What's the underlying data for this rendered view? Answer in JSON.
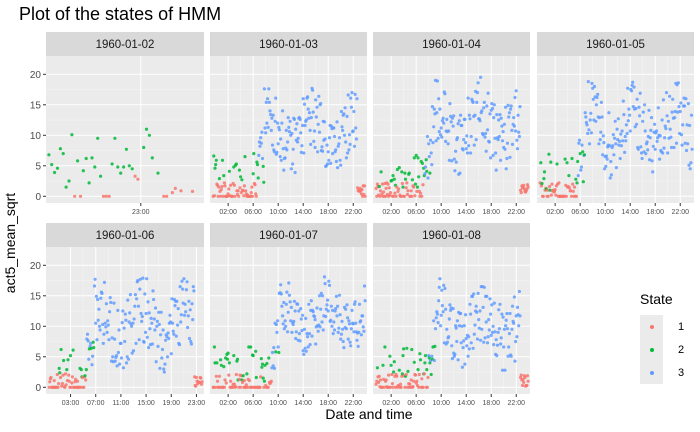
{
  "chart_data": {
    "type": "scatter",
    "title": "Plot of the states of HMM",
    "xlabel": "Date and time",
    "ylabel": "act5_mean_sqrt",
    "ylim": [
      -1.1,
      23
    ],
    "yticks": [
      0,
      5,
      10,
      15,
      20
    ],
    "grid": true,
    "legend_placement": "right",
    "legend": {
      "title": "State",
      "entries": [
        "1",
        "2",
        "3"
      ]
    },
    "colors": {
      "1": "#F8766D",
      "2": "#00BA38",
      "3": "#619CFF"
    },
    "panels": [
      {
        "label": "1960-01-02",
        "xrange": [
          21.35,
          24.1
        ],
        "xticks": [
          {
            "h": 23,
            "label": "23:00"
          }
        ],
        "points": [
          {
            "h": 21.4,
            "y": 6.8,
            "s": 2
          },
          {
            "h": 21.45,
            "y": 5.2,
            "s": 2
          },
          {
            "h": 21.5,
            "y": 3.9,
            "s": 2
          },
          {
            "h": 21.55,
            "y": 4.6,
            "s": 2
          },
          {
            "h": 21.6,
            "y": 7.8,
            "s": 2
          },
          {
            "h": 21.65,
            "y": 7.0,
            "s": 2
          },
          {
            "h": 21.7,
            "y": 1.5,
            "s": 2
          },
          {
            "h": 21.75,
            "y": 2.5,
            "s": 2
          },
          {
            "h": 21.8,
            "y": 10.1,
            "s": 2
          },
          {
            "h": 21.85,
            "y": 0.0,
            "s": 1
          },
          {
            "h": 21.9,
            "y": 5.8,
            "s": 2
          },
          {
            "h": 21.95,
            "y": 0.0,
            "s": 1
          },
          {
            "h": 22.0,
            "y": 4.2,
            "s": 2
          },
          {
            "h": 22.05,
            "y": 6.2,
            "s": 2
          },
          {
            "h": 22.1,
            "y": 2.2,
            "s": 2
          },
          {
            "h": 22.15,
            "y": 6.3,
            "s": 2
          },
          {
            "h": 22.2,
            "y": 4.8,
            "s": 2
          },
          {
            "h": 22.25,
            "y": 9.5,
            "s": 2
          },
          {
            "h": 22.3,
            "y": 3.3,
            "s": 2
          },
          {
            "h": 22.35,
            "y": 0.0,
            "s": 1
          },
          {
            "h": 22.4,
            "y": 0.0,
            "s": 1
          },
          {
            "h": 22.45,
            "y": 0.0,
            "s": 1
          },
          {
            "h": 22.5,
            "y": 5.3,
            "s": 2
          },
          {
            "h": 22.55,
            "y": 9.5,
            "s": 2
          },
          {
            "h": 22.6,
            "y": 4.8,
            "s": 2
          },
          {
            "h": 22.65,
            "y": 3.8,
            "s": 2
          },
          {
            "h": 22.7,
            "y": 4.8,
            "s": 2
          },
          {
            "h": 22.75,
            "y": 7.7,
            "s": 2
          },
          {
            "h": 22.8,
            "y": 5.0,
            "s": 2
          },
          {
            "h": 22.85,
            "y": 4.5,
            "s": 2
          },
          {
            "h": 22.9,
            "y": 3.3,
            "s": 1
          },
          {
            "h": 22.95,
            "y": 2.8,
            "s": 1
          },
          {
            "h": 23.05,
            "y": 8.0,
            "s": 2
          },
          {
            "h": 23.1,
            "y": 11.0,
            "s": 2
          },
          {
            "h": 23.15,
            "y": 10.0,
            "s": 2
          },
          {
            "h": 23.2,
            "y": 6.3,
            "s": 2
          },
          {
            "h": 23.3,
            "y": 3.8,
            "s": 2
          },
          {
            "h": 23.4,
            "y": 0.0,
            "s": 1
          },
          {
            "h": 23.45,
            "y": 0.0,
            "s": 1
          },
          {
            "h": 23.55,
            "y": 0.6,
            "s": 1
          },
          {
            "h": 23.6,
            "y": 1.3,
            "s": 1
          },
          {
            "h": 23.7,
            "y": 0.9,
            "s": 1
          },
          {
            "h": 23.9,
            "y": 0.8,
            "s": 1
          }
        ]
      },
      {
        "label": "1960-01-03",
        "xrange": [
          -0.9,
          24.2
        ],
        "xticks": [
          {
            "h": 2,
            "label": "02:00"
          },
          {
            "h": 6,
            "label": "06:00"
          },
          {
            "h": 10,
            "label": "10:00"
          },
          {
            "h": 14,
            "label": "14:00"
          },
          {
            "h": 18,
            "label": "18:00"
          },
          {
            "h": 22,
            "label": "22:00"
          }
        ]
      },
      {
        "label": "1960-01-04",
        "xrange": [
          -0.9,
          24.2
        ],
        "xticks": [
          {
            "h": 2,
            "label": "02:00"
          },
          {
            "h": 6,
            "label": "06:00"
          },
          {
            "h": 10,
            "label": "10:00"
          },
          {
            "h": 14,
            "label": "14:00"
          },
          {
            "h": 18,
            "label": "18:00"
          },
          {
            "h": 22,
            "label": "22:00"
          }
        ]
      },
      {
        "label": "1960-01-05",
        "xrange": [
          -0.9,
          24.2
        ],
        "xticks": [
          {
            "h": 2,
            "label": "02:00"
          },
          {
            "h": 6,
            "label": "06:00"
          },
          {
            "h": 10,
            "label": "10:00"
          },
          {
            "h": 14,
            "label": "14:00"
          },
          {
            "h": 18,
            "label": "18:00"
          },
          {
            "h": 22,
            "label": "22:00"
          }
        ]
      },
      {
        "label": "1960-01-06",
        "xrange": [
          -0.9,
          24.2
        ],
        "xticks": [
          {
            "h": 3,
            "label": "03:00"
          },
          {
            "h": 7,
            "label": "07:00"
          },
          {
            "h": 11,
            "label": "11:00"
          },
          {
            "h": 15,
            "label": "15:00"
          },
          {
            "h": 19,
            "label": "19:00"
          },
          {
            "h": 23,
            "label": "23:00"
          }
        ]
      },
      {
        "label": "1960-01-07",
        "xrange": [
          -0.9,
          24.2
        ],
        "xticks": [
          {
            "h": 2,
            "label": "02:00"
          },
          {
            "h": 6,
            "label": "06:00"
          },
          {
            "h": 10,
            "label": "10:00"
          },
          {
            "h": 14,
            "label": "14:00"
          },
          {
            "h": 18,
            "label": "18:00"
          },
          {
            "h": 22,
            "label": "22:00"
          }
        ]
      },
      {
        "label": "1960-01-08",
        "xrange": [
          -0.9,
          24.2
        ],
        "xticks": [
          {
            "h": 2,
            "label": "02:00"
          },
          {
            "h": 6,
            "label": "06:00"
          },
          {
            "h": 10,
            "label": "10:00"
          },
          {
            "h": 14,
            "label": "14:00"
          },
          {
            "h": 18,
            "label": "18:00"
          },
          {
            "h": 22,
            "label": "22:00"
          }
        ]
      }
    ]
  }
}
